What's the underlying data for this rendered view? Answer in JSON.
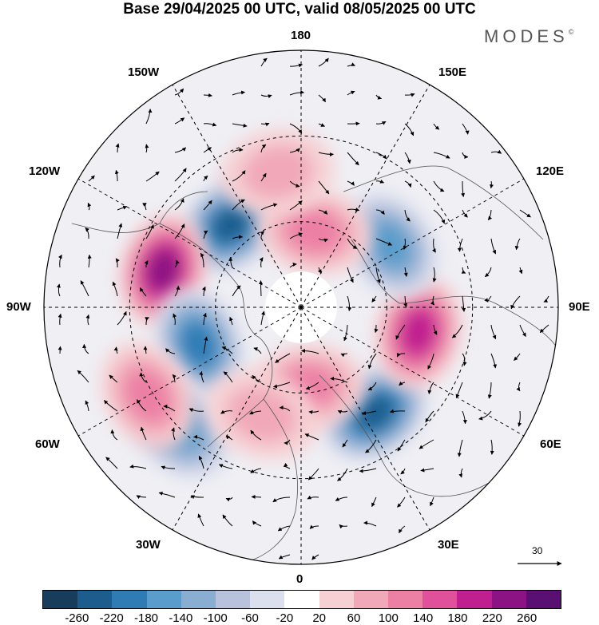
{
  "title": "Base 29/04/2025 00 UTC, valid 08/05/2025 00 UTC",
  "brand": {
    "name": "MODES",
    "mark": "©"
  },
  "longitude_labels": {
    "top": "180",
    "bottom": "0",
    "left": "90W",
    "right": "90E",
    "upper_left_1": "150W",
    "upper_left_2": "120W",
    "upper_right_1": "150E",
    "upper_right_2": "120E",
    "lower_left_1": "60W",
    "lower_left_2": "30W",
    "lower_right_1": "60E",
    "lower_right_2": "30E"
  },
  "reference_vector": {
    "value": "30"
  },
  "colorbar": {
    "colors": [
      "#173c5c",
      "#1d5d8e",
      "#2f7cb5",
      "#5a9ccb",
      "#8aaed2",
      "#b8c2dd",
      "#dcdfee",
      "#ffffff",
      "#f6d1d4",
      "#f1a8b8",
      "#ec7fa4",
      "#e0509b",
      "#c01f8f",
      "#8c1383",
      "#5a0f73"
    ],
    "ticks": [
      "-260",
      "-220",
      "-180",
      "-140",
      "-100",
      "-60",
      "-20",
      "20",
      "60",
      "100",
      "140",
      "180",
      "220",
      "260"
    ]
  },
  "anomalies": [
    {
      "lon": -140,
      "colat": 38,
      "value": -220
    },
    {
      "lon": -105,
      "colat": 50,
      "value": 230
    },
    {
      "lon": -70,
      "colat": 38,
      "value": -200
    },
    {
      "lon": -45,
      "colat": 60,
      "value": -170
    },
    {
      "lon": -60,
      "colat": 62,
      "value": 120
    },
    {
      "lon": 35,
      "colat": 45,
      "value": -240
    },
    {
      "lon": 78,
      "colat": 42,
      "value": 180
    },
    {
      "lon": 125,
      "colat": 38,
      "value": -170
    },
    {
      "lon": 170,
      "colat": 27,
      "value": 130
    },
    {
      "lon": -170,
      "colat": 48,
      "value": 80
    },
    {
      "lon": 5,
      "colat": 28,
      "value": 110
    },
    {
      "lon": -20,
      "colat": 40,
      "value": 80
    }
  ]
}
